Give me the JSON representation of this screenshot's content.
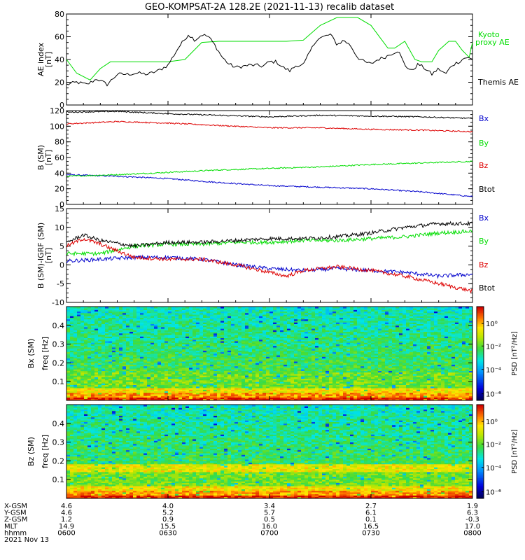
{
  "title": "GEO-KOMPSAT-2A 128.2E (2021-11-13) recalib dataset",
  "chart_data": [
    {
      "type": "line",
      "panel": "ae",
      "ylabel": [
        "AE index",
        "[nT]"
      ],
      "ylim": [
        0,
        80
      ],
      "yticks": [
        0,
        20,
        40,
        60,
        80
      ],
      "xlim": [
        0,
        120
      ],
      "series": [
        {
          "name": "Kyoto proxy AE",
          "legend": [
            "Kyoto",
            "proxy AE"
          ],
          "color": "#00dd00",
          "x": [
            0,
            3,
            7,
            10,
            13,
            16,
            20,
            25,
            30,
            35,
            40,
            45,
            50,
            55,
            60,
            63,
            65,
            70,
            75,
            80,
            83,
            86,
            90,
            93,
            95,
            97,
            100,
            103,
            105,
            108,
            110,
            113,
            115,
            117,
            119,
            120
          ],
          "y": [
            40,
            28,
            22,
            32,
            38,
            38,
            38,
            38,
            38,
            40,
            55,
            56,
            56,
            56,
            56,
            56,
            56,
            57,
            70,
            77,
            77,
            77,
            70,
            58,
            50,
            50,
            56,
            40,
            38,
            38,
            48,
            56,
            56,
            48,
            42,
            55
          ]
        },
        {
          "name": "Themis AE",
          "legend": [
            "Themis AE"
          ],
          "color": "#000000",
          "x": [
            0,
            3,
            6,
            9,
            12,
            15,
            18,
            21,
            24,
            27,
            30,
            33,
            36,
            38,
            40,
            42,
            44,
            46,
            48,
            50,
            52,
            54,
            56,
            58,
            60,
            62,
            64,
            66,
            68,
            70,
            72,
            74,
            76,
            78,
            80,
            82,
            84,
            86,
            88,
            90,
            92,
            94,
            96,
            98,
            100,
            102,
            104,
            106,
            108,
            110,
            112,
            114,
            116,
            118,
            120
          ],
          "y": [
            18,
            20,
            18,
            23,
            18,
            27,
            27,
            28,
            27,
            30,
            35,
            50,
            62,
            57,
            62,
            60,
            52,
            42,
            36,
            33,
            34,
            35,
            35,
            34,
            38,
            38,
            33,
            30,
            35,
            35,
            47,
            58,
            60,
            62,
            53,
            57,
            52,
            42,
            38,
            36,
            40,
            42,
            45,
            48,
            35,
            30,
            36,
            32,
            27,
            32,
            27,
            35,
            38,
            42,
            40
          ]
        }
      ]
    },
    {
      "type": "line",
      "panel": "b_sm",
      "ylabel": [
        "B (SM)",
        "[nT]"
      ],
      "ylim": [
        0,
        120
      ],
      "yticks": [
        0,
        20,
        40,
        60,
        80,
        100,
        120
      ],
      "xlim": [
        0,
        120
      ],
      "series": [
        {
          "name": "Bx",
          "color": "#0000cc",
          "x": [
            0,
            15,
            30,
            45,
            60,
            75,
            90,
            105,
            120
          ],
          "y": [
            38,
            36,
            33,
            28,
            24,
            22,
            20,
            16,
            10
          ]
        },
        {
          "name": "By",
          "color": "#00dd00",
          "x": [
            0,
            15,
            30,
            45,
            60,
            75,
            90,
            105,
            120
          ],
          "y": [
            36,
            38,
            41,
            44,
            46,
            48,
            51,
            53,
            55
          ]
        },
        {
          "name": "Bz",
          "color": "#dd0000",
          "x": [
            0,
            15,
            30,
            45,
            60,
            75,
            90,
            105,
            120
          ],
          "y": [
            103,
            106,
            104,
            101,
            98,
            98,
            96,
            95,
            93
          ]
        },
        {
          "name": "Btot",
          "color": "#000000",
          "x": [
            0,
            15,
            30,
            45,
            60,
            75,
            90,
            105,
            120
          ],
          "y": [
            118,
            119,
            116,
            114,
            112,
            114,
            113,
            112,
            110
          ]
        }
      ]
    },
    {
      "type": "line",
      "panel": "b_minus_igrf",
      "ylabel": [
        "B (SM)-IGRF (SM)",
        "[nT]"
      ],
      "ylim": [
        -10,
        15
      ],
      "yticks": [
        -10,
        -5,
        0,
        5,
        10,
        15
      ],
      "xlim": [
        0,
        120
      ],
      "series": [
        {
          "name": "Bx",
          "color": "#0000cc",
          "x": [
            0,
            10,
            20,
            30,
            40,
            50,
            60,
            70,
            80,
            90,
            100,
            110,
            120
          ],
          "y": [
            1,
            1.5,
            2,
            2,
            1.5,
            0,
            -1,
            -1.5,
            -1,
            -1.5,
            -2,
            -3,
            -2.5
          ]
        },
        {
          "name": "By",
          "color": "#00dd00",
          "x": [
            0,
            10,
            20,
            30,
            40,
            50,
            60,
            70,
            80,
            90,
            100,
            110,
            120
          ],
          "y": [
            3,
            3,
            5,
            5.5,
            5.5,
            6,
            6,
            6.5,
            6.5,
            7,
            7.5,
            8.5,
            9
          ]
        },
        {
          "name": "Bz",
          "color": "#dd0000",
          "x": [
            0,
            5,
            10,
            20,
            30,
            40,
            50,
            60,
            65,
            70,
            80,
            90,
            100,
            110,
            120
          ],
          "y": [
            5,
            7,
            5.5,
            2,
            1.5,
            1.5,
            0,
            -2,
            -3,
            -1.5,
            -0.5,
            -1.5,
            -3,
            -5,
            -7
          ]
        },
        {
          "name": "Btot",
          "color": "#000000",
          "x": [
            0,
            5,
            10,
            20,
            30,
            40,
            50,
            60,
            70,
            80,
            90,
            100,
            110,
            120
          ],
          "y": [
            6,
            8,
            6.5,
            5,
            6,
            6,
            6.5,
            7,
            7,
            7.5,
            8.5,
            10,
            11,
            11
          ]
        }
      ]
    },
    {
      "type": "heatmap",
      "panel": "bx_spec",
      "ylabel": [
        "Bx (SM)",
        "freq [Hz]"
      ],
      "yticks": [
        "0.1",
        "0.2",
        "0.3",
        "0.4"
      ],
      "ylim": [
        0,
        0.5
      ],
      "colorbar": {
        "label": "PSD [nT²/Hz]",
        "ticks": [
          "10^0",
          "10^-2",
          "10^-4",
          "10^-6"
        ]
      },
      "profile": "strong low-frequency power (red/orange below 0.05 Hz), yellow band near 0.15 Hz, green-cyan above"
    },
    {
      "type": "heatmap",
      "panel": "bz_spec",
      "ylabel": [
        "Bz (SM)",
        "freq [Hz]"
      ],
      "yticks": [
        "0.1",
        "0.2",
        "0.3",
        "0.4"
      ],
      "ylim": [
        0,
        0.5
      ],
      "colorbar": {
        "label": "PSD [nT²/Hz]",
        "ticks": [
          "10^0",
          "10^-2",
          "10^-4",
          "10^-6"
        ]
      },
      "profile": "strong low-frequency power (red/orange below 0.05 Hz), green above, more cyan in upper frequencies"
    }
  ],
  "axis_table": {
    "rows": [
      {
        "label": "X-GSM",
        "values": [
          "4.6",
          "4.0",
          "3.4",
          "2.7",
          "1.9"
        ]
      },
      {
        "label": "Y-GSM",
        "values": [
          "4.6",
          "5.2",
          "5.7",
          "6.1",
          "6.3"
        ]
      },
      {
        "label": "Z-GSM",
        "values": [
          "1.2",
          "0.9",
          "0.5",
          "0.1",
          "-0.3"
        ]
      },
      {
        "label": "MLT",
        "values": [
          "14.9",
          "15.5",
          "16.0",
          "16.5",
          "17.0"
        ]
      },
      {
        "label": "hhmm",
        "values": [
          "0600",
          "0630",
          "0700",
          "0730",
          "0800"
        ]
      }
    ],
    "date": "2021 Nov 13"
  }
}
